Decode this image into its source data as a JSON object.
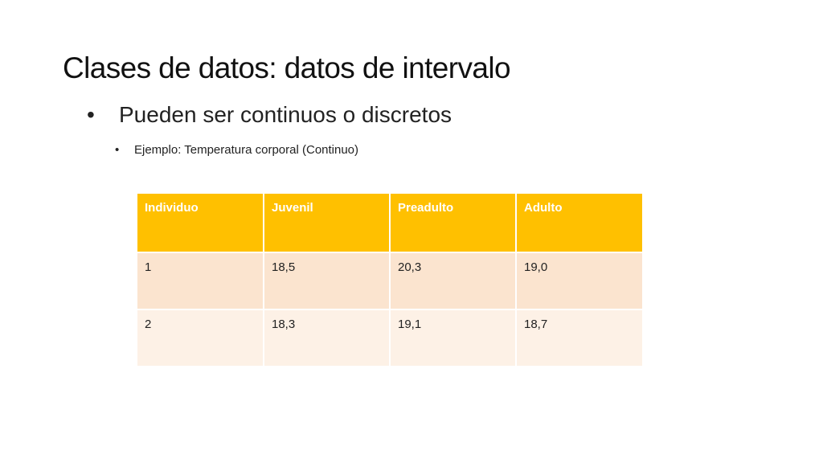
{
  "slide": {
    "title": "Clases de datos: datos de intervalo",
    "bullet_level1": {
      "marker": "•",
      "text": "Pueden ser continuos o discretos"
    },
    "bullet_level2": {
      "marker": "•",
      "text": "Ejemplo: Temperatura corporal (Continuo)"
    }
  },
  "table": {
    "headers": [
      "Individuo",
      "Juvenil",
      "Preadulto",
      "Adulto"
    ],
    "rows": [
      [
        "1",
        "18,5",
        "20,3",
        "19,0"
      ],
      [
        "2",
        "18,3",
        "19,1",
        "18,7"
      ]
    ],
    "colors": {
      "header_bg": "#ffc000",
      "row1_bg": "#fbe4cf",
      "row2_bg": "#fdf1e6"
    }
  }
}
